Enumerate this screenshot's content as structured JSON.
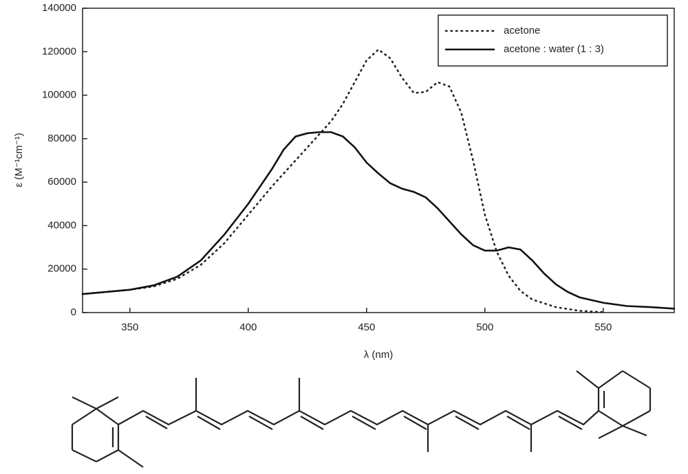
{
  "chart_data": {
    "type": "line",
    "xlabel": "λ (nm)",
    "ylabel": "ε (M⁻¹cm⁻¹)",
    "xlim": [
      330,
      580
    ],
    "xticks": [
      350,
      400,
      450,
      500,
      550
    ],
    "ylim": [
      0,
      140000
    ],
    "yticks": [
      0,
      20000,
      40000,
      60000,
      80000,
      100000,
      120000,
      140000
    ],
    "legend": "upper right",
    "series": [
      {
        "name": "acetone",
        "color": "#222222",
        "linestyle": "dotted",
        "x": [
          330,
          340,
          350,
          360,
          370,
          380,
          390,
          400,
          410,
          420,
          425,
          430,
          435,
          440,
          445,
          450,
          455,
          460,
          465,
          470,
          475,
          480,
          485,
          490,
          495,
          500,
          505,
          510,
          515,
          520,
          530,
          540,
          550
        ],
        "values": [
          8500,
          9500,
          10500,
          12000,
          15500,
          22000,
          32000,
          45000,
          58000,
          70000,
          76000,
          82000,
          88000,
          96000,
          106000,
          116000,
          121000,
          117000,
          108000,
          101000,
          101500,
          106000,
          104000,
          92000,
          70000,
          45000,
          28000,
          17000,
          10000,
          6000,
          2500,
          800,
          200
        ]
      },
      {
        "name": "acetone : water (1 : 3)",
        "color": "#111111",
        "linestyle": "solid",
        "x": [
          330,
          340,
          350,
          360,
          370,
          380,
          390,
          400,
          410,
          415,
          420,
          425,
          430,
          435,
          440,
          445,
          450,
          455,
          460,
          465,
          470,
          475,
          480,
          485,
          490,
          495,
          500,
          505,
          510,
          515,
          520,
          525,
          530,
          535,
          540,
          550,
          560,
          570,
          580
        ],
        "values": [
          8500,
          9500,
          10500,
          12500,
          16500,
          24000,
          36000,
          50000,
          66000,
          75000,
          81000,
          82500,
          83000,
          83000,
          81000,
          76000,
          69000,
          64000,
          59500,
          57000,
          55500,
          53000,
          48000,
          42000,
          36000,
          31000,
          28500,
          28500,
          30000,
          29000,
          24000,
          18000,
          13000,
          9500,
          7000,
          4500,
          3000,
          2500,
          1800
        ]
      }
    ]
  }
}
